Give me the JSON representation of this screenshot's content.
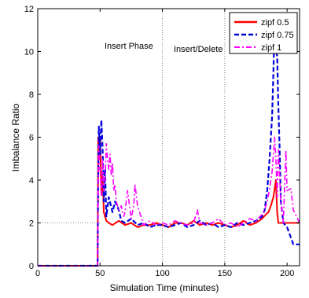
{
  "chart_data": {
    "type": "line",
    "xlabel": "Simulation Time (minutes)",
    "ylabel": "Imbalance Ratio",
    "xlim": [
      0,
      210
    ],
    "ylim": [
      0,
      12
    ],
    "xticks": [
      0,
      50,
      100,
      150,
      200
    ],
    "yticks": [
      0,
      2,
      4,
      6,
      8,
      10,
      12
    ],
    "grid": false,
    "legend": "top-right",
    "annotations": [
      {
        "text": "Insert Phase",
        "x": 68,
        "y": 10.7
      },
      {
        "text": "Insert/Delete",
        "x": 123,
        "y": 10.5
      }
    ],
    "reference_lines": [
      {
        "orientation": "vertical",
        "x": 100,
        "style": "dotted"
      },
      {
        "orientation": "vertical",
        "x": 150,
        "style": "dotted"
      },
      {
        "orientation": "horizontal",
        "y": 2,
        "x_range": [
          0,
          50
        ],
        "style": "dotted"
      }
    ],
    "series": [
      {
        "name": "zipf 0.5",
        "color": "#ff0000",
        "style": "solid",
        "x": [
          0,
          48,
          48.5,
          49,
          50,
          51,
          52,
          53,
          55,
          57,
          60,
          65,
          70,
          75,
          80,
          85,
          90,
          95,
          100,
          105,
          110,
          115,
          120,
          125,
          130,
          135,
          140,
          145,
          150,
          155,
          160,
          165,
          170,
          175,
          180,
          183,
          185,
          187,
          189,
          191,
          192,
          193,
          195,
          197,
          200,
          205,
          210
        ],
        "y": [
          0,
          0,
          6.0,
          5.6,
          6.0,
          3.3,
          4.2,
          2.5,
          2.1,
          2.0,
          1.9,
          2.1,
          1.9,
          2.0,
          1.8,
          1.9,
          1.9,
          2.0,
          1.9,
          1.8,
          2.0,
          2.0,
          1.9,
          2.1,
          1.9,
          2.0,
          1.9,
          2.0,
          1.9,
          1.8,
          1.9,
          2.1,
          1.9,
          2.0,
          2.2,
          2.4,
          2.5,
          2.8,
          3.2,
          4.0,
          2.5,
          2.0,
          2.0,
          2.0,
          2.0,
          2.0,
          2.0
        ]
      },
      {
        "name": "zipf 0.75",
        "color": "#0000dd",
        "style": "dashed",
        "x": [
          0,
          48,
          48.5,
          49,
          50,
          51,
          52,
          53,
          54,
          55,
          57,
          60,
          62,
          65,
          67,
          70,
          75,
          80,
          85,
          90,
          95,
          100,
          105,
          110,
          115,
          120,
          125,
          130,
          135,
          140,
          145,
          150,
          155,
          160,
          165,
          170,
          175,
          180,
          182,
          184,
          186,
          188,
          189,
          190,
          191,
          192,
          193,
          194,
          195,
          197,
          200,
          205,
          210
        ],
        "y": [
          0,
          0,
          4.0,
          6.5,
          5.2,
          6.8,
          5.5,
          3.0,
          4.5,
          2.3,
          3.2,
          2.5,
          3.0,
          2.6,
          2.1,
          2.0,
          2.2,
          1.9,
          2.0,
          1.8,
          1.9,
          1.9,
          1.8,
          1.9,
          2.0,
          1.8,
          1.9,
          2.1,
          1.9,
          2.0,
          1.8,
          1.9,
          1.8,
          2.0,
          1.9,
          2.0,
          2.1,
          2.3,
          2.6,
          3.5,
          5.0,
          7.0,
          9.0,
          11.5,
          10.0,
          9.8,
          7.5,
          5.5,
          3.0,
          2.0,
          1.8,
          1.0,
          1.0
        ]
      },
      {
        "name": "zipf 1",
        "color": "#ff00ff",
        "style": "dashdot",
        "x": [
          0,
          48,
          48.5,
          49,
          50,
          51,
          52,
          53,
          54,
          55,
          56,
          57,
          58,
          59,
          60,
          61,
          62,
          63,
          65,
          67,
          69,
          70,
          72,
          75,
          77,
          78,
          80,
          85,
          90,
          95,
          100,
          105,
          110,
          115,
          120,
          125,
          128,
          130,
          135,
          140,
          145,
          150,
          155,
          160,
          165,
          170,
          175,
          180,
          182,
          184,
          186,
          188,
          190,
          191,
          192,
          193,
          195,
          197,
          199,
          200,
          203,
          205,
          210
        ],
        "y": [
          0,
          0,
          3.5,
          5.6,
          4.5,
          3.3,
          5.0,
          3.5,
          4.0,
          5.7,
          5.0,
          4.5,
          5.2,
          4.2,
          4.8,
          3.5,
          3.8,
          3.0,
          2.6,
          2.8,
          2.3,
          2.5,
          3.5,
          2.2,
          2.8,
          3.8,
          2.8,
          1.9,
          2.1,
          1.9,
          2.0,
          1.9,
          2.1,
          2.0,
          1.9,
          2.0,
          2.6,
          2.0,
          1.9,
          2.0,
          2.2,
          1.9,
          2.0,
          1.8,
          2.0,
          2.2,
          2.1,
          2.4,
          2.6,
          3.0,
          3.6,
          4.4,
          6.0,
          5.0,
          3.2,
          5.4,
          3.0,
          2.0,
          5.4,
          3.5,
          3.6,
          2.6,
          2.0
        ]
      }
    ]
  }
}
